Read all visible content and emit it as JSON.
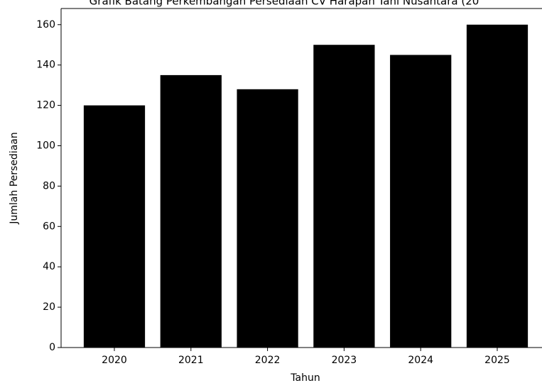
{
  "chart_data": {
    "type": "bar",
    "title": "Grafik Batang Perkembangan Persediaan CV Harapan Tani Nusantara (20",
    "x_label": "Tahun",
    "y_label": "Jumlah Persediaan",
    "categories": [
      "2020",
      "2021",
      "2022",
      "2023",
      "2024",
      "2025"
    ],
    "values": [
      120,
      135,
      128,
      150,
      145,
      160
    ],
    "color": "#000000",
    "ylim": [
      0,
      168
    ],
    "yticks": [
      0,
      20,
      40,
      60,
      80,
      100,
      120,
      140,
      160
    ],
    "grid": false
  }
}
